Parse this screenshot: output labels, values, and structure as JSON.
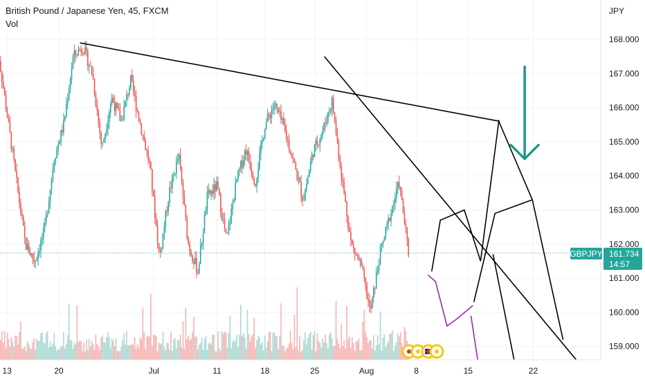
{
  "header": {
    "title": "British Pound / Japanese Yen, 45, FXCM",
    "indicator": "Vol"
  },
  "currency_label": "JPY",
  "symbol_badge": "GBPJPY",
  "price_badge": {
    "price": "161.734",
    "countdown": "14:57"
  },
  "colors": {
    "up": "#26a69a",
    "down": "#ef5350",
    "vol_up": "#a7d8d2",
    "vol_down": "#f5b2b0",
    "badge": "#26a69a",
    "arrow": "#1a9a84",
    "drawing": "#000000",
    "purple": "#9c27b0",
    "grid": "#f0f3fa",
    "axis_line": "#e0e3eb"
  },
  "chart_data": {
    "type": "candlestick",
    "symbol": "GBPJPY",
    "timeframe": "45",
    "source": "FXCM",
    "x_tick_labels": [
      "13",
      "20",
      "Jul",
      "11",
      "18",
      "25",
      "Aug",
      "8",
      "15",
      "22"
    ],
    "y_tick_labels": [
      "159.000",
      "160.000",
      "161.000",
      "162.000",
      "163.000",
      "164.000",
      "165.000",
      "166.000",
      "167.000",
      "168.000"
    ],
    "ylim": [
      158.6,
      168.9
    ],
    "last_price": 161.734,
    "price_path_anchors": [
      {
        "d": 0,
        "p": 168.0
      },
      {
        "d": 1.5,
        "p": 165.0
      },
      {
        "d": 3,
        "p": 162.0
      },
      {
        "d": 4,
        "p": 161.5
      },
      {
        "d": 5,
        "p": 162.4
      },
      {
        "d": 6,
        "p": 164.5
      },
      {
        "d": 7,
        "p": 165.5
      },
      {
        "d": 8,
        "p": 167.5
      },
      {
        "d": 9,
        "p": 167.8
      },
      {
        "d": 10,
        "p": 167.0
      },
      {
        "d": 11,
        "p": 164.8
      },
      {
        "d": 12,
        "p": 166.3
      },
      {
        "d": 13,
        "p": 165.6
      },
      {
        "d": 14,
        "p": 166.8
      },
      {
        "d": 15,
        "p": 165.5
      },
      {
        "d": 16,
        "p": 164.3
      },
      {
        "d": 17,
        "p": 161.6
      },
      {
        "d": 18,
        "p": 163.5
      },
      {
        "d": 19,
        "p": 164.6
      },
      {
        "d": 20,
        "p": 162.0
      },
      {
        "d": 21,
        "p": 161.2
      },
      {
        "d": 22,
        "p": 163.4
      },
      {
        "d": 23,
        "p": 163.7
      },
      {
        "d": 24,
        "p": 162.1
      },
      {
        "d": 25,
        "p": 163.8
      },
      {
        "d": 26,
        "p": 164.8
      },
      {
        "d": 27,
        "p": 163.8
      },
      {
        "d": 28,
        "p": 165.5
      },
      {
        "d": 29,
        "p": 166.1
      },
      {
        "d": 30,
        "p": 165.4
      },
      {
        "d": 31,
        "p": 164.4
      },
      {
        "d": 32,
        "p": 163.3
      },
      {
        "d": 33,
        "p": 164.7
      },
      {
        "d": 34,
        "p": 165.3
      },
      {
        "d": 35,
        "p": 166.2
      },
      {
        "d": 36,
        "p": 164.0
      },
      {
        "d": 37,
        "p": 162.0
      },
      {
        "d": 38,
        "p": 161.4
      },
      {
        "d": 39,
        "p": 160.0
      },
      {
        "d": 40,
        "p": 161.7
      },
      {
        "d": 41,
        "p": 162.8
      },
      {
        "d": 42,
        "p": 163.8
      },
      {
        "d": 43,
        "p": 161.7
      }
    ],
    "annotations": [
      {
        "kind": "trendline",
        "from": {
          "d": 8.7,
          "p": 167.9
        },
        "to": {
          "d": 52.5,
          "p": 165.6
        }
      },
      {
        "kind": "trendline",
        "from": {
          "d": 34.2,
          "p": 167.5
        },
        "to": {
          "d": 60.5,
          "p": 158.6
        }
      },
      {
        "kind": "polyline",
        "color": "black",
        "points": [
          {
            "d": 45.4,
            "p": 161.2
          },
          {
            "d": 46.3,
            "p": 162.7
          },
          {
            "d": 48.8,
            "p": 163.0
          },
          {
            "d": 50.5,
            "p": 161.5
          },
          {
            "d": 52.4,
            "p": 165.6
          },
          {
            "d": 55.9,
            "p": 163.3
          },
          {
            "d": 59.1,
            "p": 159.2
          }
        ]
      },
      {
        "kind": "polyline",
        "color": "black",
        "points": [
          {
            "d": 49.8,
            "p": 160.3
          },
          {
            "d": 52.0,
            "p": 162.9
          },
          {
            "d": 55.9,
            "p": 163.3
          }
        ]
      },
      {
        "kind": "line",
        "color": "black",
        "from": {
          "d": 51.8,
          "p": 161.7
        },
        "to": {
          "d": 54.0,
          "p": 158.6
        }
      },
      {
        "kind": "polyline",
        "color": "purple",
        "points": [
          {
            "d": 45.0,
            "p": 161.1
          },
          {
            "d": 45.8,
            "p": 160.9
          },
          {
            "d": 47.0,
            "p": 159.6
          },
          {
            "d": 48.0,
            "p": 159.8
          },
          {
            "d": 49.7,
            "p": 160.2
          }
        ]
      },
      {
        "kind": "line",
        "color": "purple",
        "from": {
          "d": 49.5,
          "p": 159.9
        },
        "to": {
          "d": 50.2,
          "p": 158.6
        }
      },
      {
        "kind": "arrow",
        "direction": "down",
        "from": {
          "d": 55.1,
          "p": 167.2
        },
        "to": {
          "d": 55.1,
          "p": 164.5
        }
      }
    ]
  }
}
